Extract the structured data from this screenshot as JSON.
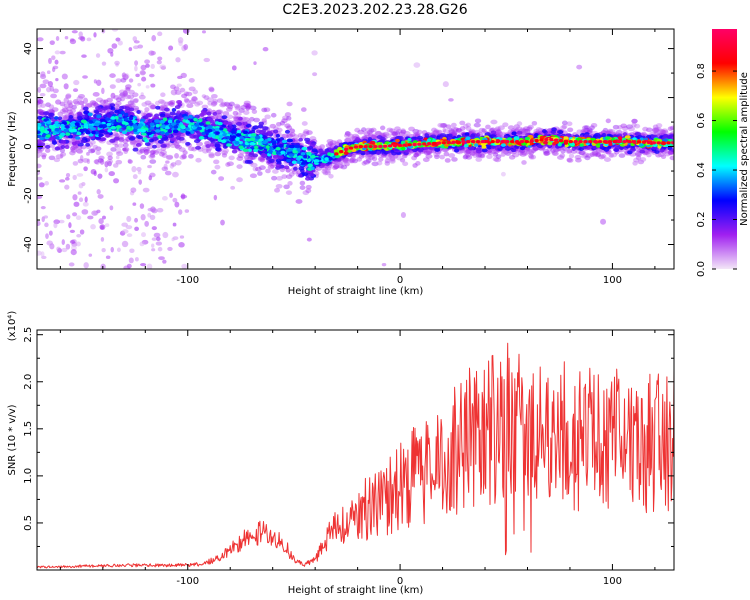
{
  "title": "C2E3.2023.202.23.28.G26",
  "chart_data": [
    {
      "type": "heatmap",
      "xlabel": "Height of straight line (km)",
      "ylabel": "Frequency (Hz)",
      "xlim": [
        -171,
        129
      ],
      "ylim": [
        -50,
        48
      ],
      "xticks": [
        -100,
        0,
        100
      ],
      "yticks": [
        -40,
        -20,
        0,
        20,
        40
      ],
      "grid": false,
      "colorbar": {
        "label": "Normalized spectral amplitude",
        "ticks": [
          0.0,
          0.2,
          0.4,
          0.6,
          0.8
        ],
        "range": [
          0,
          0.97
        ],
        "colormap": [
          "#f3e6f7",
          "#a020f0",
          "#0000ff",
          "#00ffff",
          "#00ff00",
          "#ffff00",
          "#ff0000",
          "#ff0066"
        ]
      },
      "ridge": {
        "x": [
          -171,
          -160,
          -150,
          -140,
          -130,
          -125,
          -118,
          -110,
          -100,
          -90,
          -80,
          -70,
          -60,
          -55,
          -50,
          -45,
          -40,
          -35,
          -30,
          -25,
          -20,
          -10,
          0,
          10,
          20,
          30,
          40,
          50,
          60,
          70,
          80,
          90,
          100,
          110,
          120,
          129
        ],
        "y": [
          7,
          7,
          8,
          9,
          10,
          9,
          6,
          8,
          9,
          7,
          4,
          2,
          0,
          -2,
          -3,
          -5,
          -6,
          -5,
          -3,
          -1,
          0,
          0,
          0.5,
          1,
          1.5,
          2,
          2,
          2,
          2,
          3,
          2,
          2,
          2,
          2,
          1.5,
          1.5
        ]
      }
    },
    {
      "type": "line",
      "xlabel": "Height of straight line (km)",
      "ylabel": "SNR (10 * v/v)",
      "y_multiplier": "(x10⁴)",
      "xlim": [
        -171,
        129
      ],
      "ylim": [
        0,
        2.55
      ],
      "xticks": [
        -100,
        0,
        100
      ],
      "yticks": [
        0.5,
        1.0,
        1.5,
        2.0,
        2.5
      ],
      "series_color": "#ee3333",
      "envelope": {
        "x": [
          -171,
          -150,
          -130,
          -110,
          -95,
          -85,
          -78,
          -72,
          -66,
          -60,
          -54,
          -50,
          -45,
          -40,
          -36,
          -30,
          -20,
          -10,
          0,
          10,
          20,
          30,
          40,
          50,
          55,
          60,
          70,
          80,
          90,
          100,
          110,
          120,
          129
        ],
        "y": [
          0.03,
          0.04,
          0.05,
          0.05,
          0.06,
          0.12,
          0.25,
          0.35,
          0.4,
          0.35,
          0.25,
          0.12,
          0.06,
          0.12,
          0.3,
          0.45,
          0.6,
          0.75,
          0.9,
          1.05,
          1.2,
          1.35,
          1.5,
          1.6,
          1.6,
          1.55,
          1.45,
          1.4,
          1.35,
          1.4,
          1.35,
          1.35,
          1.4
        ]
      }
    }
  ]
}
